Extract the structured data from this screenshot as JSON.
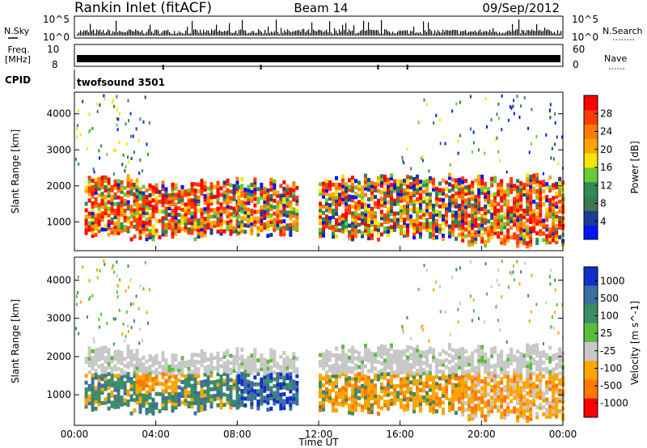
{
  "header": {
    "station": "Rankin Inlet (fitACF)",
    "beam": "Beam 14",
    "date": "09/Sep/2012"
  },
  "status_panels": {
    "nsky": {
      "label": "N.Sky",
      "ticks": [
        "10^5",
        "10^0"
      ]
    },
    "nsearch": {
      "label": "N.Search",
      "ticks": [
        "10^5",
        "10^0"
      ]
    },
    "freq": {
      "label_top": "Freq.",
      "label_bottom": "[MHz]",
      "ticks": [
        "10",
        "8"
      ]
    },
    "nave": {
      "label": "Nave",
      "ticks": [
        "60",
        "0"
      ]
    },
    "cpid": {
      "label": "CPID",
      "value": "twofsound 3501"
    }
  },
  "chart_data": [
    {
      "type": "heatmap",
      "parameter": "Power",
      "ylabel": "Slant Range [km]",
      "yticks": [
        "1000",
        "2000",
        "3000",
        "4000"
      ],
      "ylim": [
        200,
        4600
      ],
      "colorbar_label": "Power [dB]",
      "colorbar_ticks": [
        "4",
        "8",
        "12",
        "16",
        "20",
        "24",
        "28"
      ],
      "colorbar_colors": [
        "#0014ff",
        "#1e3c96",
        "#3c7850",
        "#2e8b57",
        "#66cc33",
        "#f5e500",
        "#ffa500",
        "#ff7a00",
        "#ff3c00",
        "#ff0000"
      ],
      "bands": [
        {
          "t0": 0.5,
          "t1": 3.0,
          "r0": 600,
          "r1": 2100,
          "level": "high"
        },
        {
          "t0": 3.0,
          "t1": 8.0,
          "r0": 600,
          "r1": 2000,
          "level": "high"
        },
        {
          "t0": 8.0,
          "t1": 11.0,
          "r0": 700,
          "r1": 2000,
          "level": "mid"
        },
        {
          "t0": 12.0,
          "t1": 19.0,
          "r0": 600,
          "r1": 2150,
          "level": "mid"
        },
        {
          "t0": 19.0,
          "t1": 24.0,
          "r0": 400,
          "r1": 2150,
          "level": "high"
        }
      ]
    },
    {
      "type": "heatmap",
      "parameter": "Velocity",
      "ylabel": "Slant Range [km]",
      "yticks": [
        "1000",
        "2000",
        "3000",
        "4000"
      ],
      "ylim": [
        200,
        4600
      ],
      "xlabel": "Time UT",
      "xticks": [
        "00:00",
        "04:00",
        "08:00",
        "12:00",
        "16:00",
        "20:00",
        "00:00"
      ],
      "colorbar_label": "Velocity [m s^-1]",
      "colorbar_ticks": [
        "1000",
        "500",
        "100",
        "25",
        "-25",
        "-100",
        "-500",
        "-1000"
      ],
      "colorbar_colors": [
        "#1030c8",
        "#3c6ea0",
        "#3c8c64",
        "#5abe3c",
        "#c8c8c8",
        "#ffa500",
        "#ff7800",
        "#ff0000"
      ]
    }
  ]
}
